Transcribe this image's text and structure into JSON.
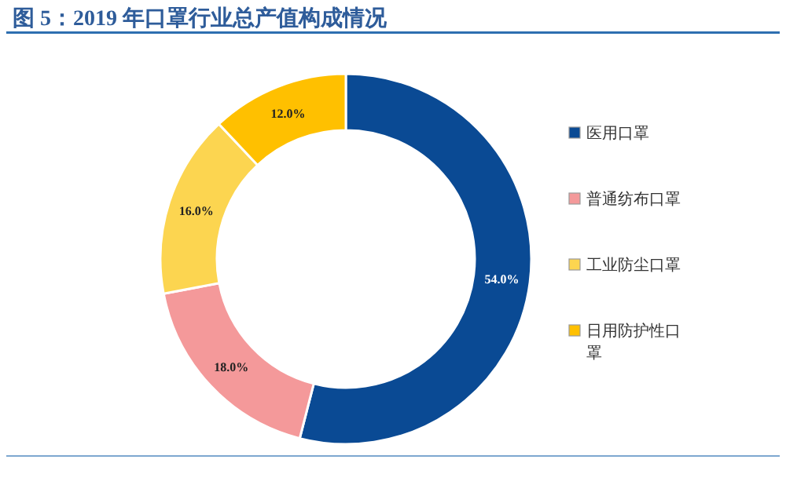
{
  "chart_data": {
    "type": "donut",
    "title": "图 5：2019 年口罩行业总产值构成情况",
    "categories": [
      "医用口罩",
      "普通纺布口罩",
      "工业防尘口罩",
      "日用防护性口罩"
    ],
    "values": [
      54.0,
      18.0,
      16.0,
      12.0
    ],
    "colors": [
      "#0a4a94",
      "#f4999a",
      "#fcd550",
      "#ffc000"
    ],
    "value_labels": [
      "54.0%",
      "18.0%",
      "16.0%",
      "12.0%"
    ],
    "legend": "right"
  }
}
